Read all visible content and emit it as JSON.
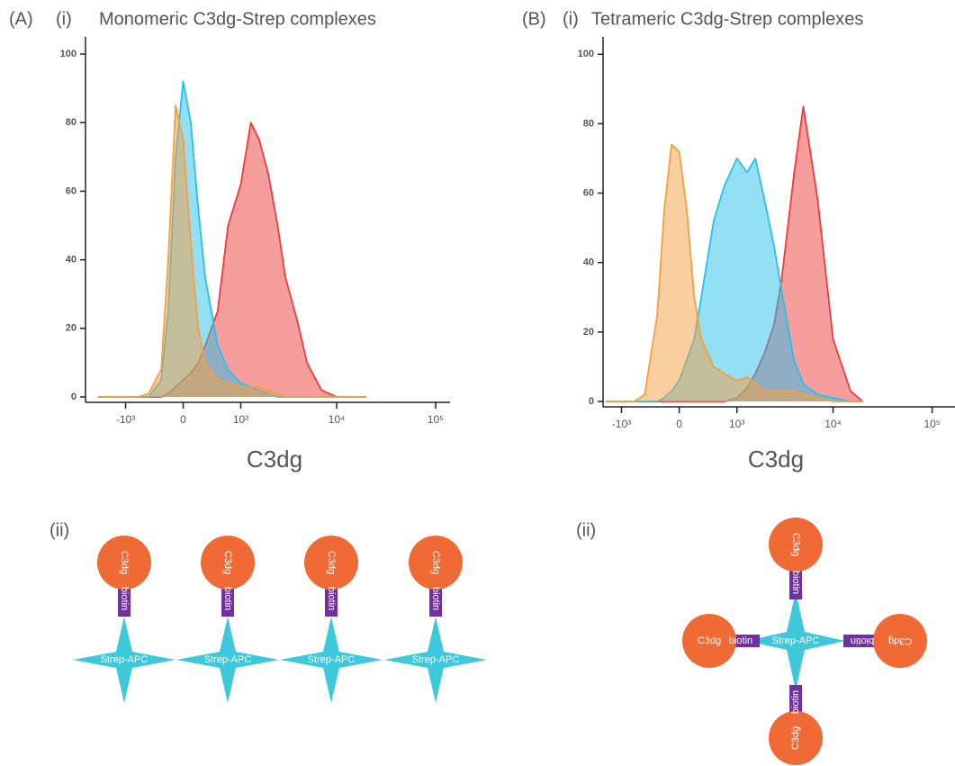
{
  "panels": [
    {
      "label": "(A)",
      "part": "(i)"
    },
    {
      "label": "(B)",
      "part": "(i)"
    }
  ],
  "chart_data": [
    {
      "type": "histogram-area",
      "title": "Monomeric C3dg-Strep complexes",
      "x_label": "C3dg",
      "x_scale": "biexponential",
      "x": [
        -2000,
        -1500,
        -1000,
        -700,
        -500,
        -300,
        -200,
        -100,
        0,
        100,
        200,
        300,
        500,
        700,
        1000,
        1300,
        1600,
        2000,
        2500,
        3000,
        4000,
        5000,
        7000,
        10000,
        15000,
        20000
      ],
      "series": [
        {
          "color": "#ee3b3b",
          "values": [
            0,
            0,
            0,
            0,
            0,
            0,
            1,
            3,
            5,
            7,
            10,
            15,
            25,
            50,
            62,
            80,
            75,
            65,
            50,
            35,
            22,
            10,
            2,
            0,
            0,
            0
          ]
        },
        {
          "color": "#27c0ea",
          "values": [
            0,
            0,
            0,
            0,
            0,
            5,
            25,
            70,
            92,
            80,
            55,
            35,
            15,
            8,
            4,
            3,
            2,
            1,
            0,
            0,
            0,
            0,
            0,
            0,
            0,
            0
          ]
        },
        {
          "color": "#f5a040",
          "values": [
            0,
            0,
            0,
            0,
            1,
            8,
            40,
            85,
            75,
            45,
            20,
            10,
            5,
            4,
            3,
            3,
            3,
            2,
            1,
            0,
            0,
            0,
            0,
            0,
            0,
            0
          ]
        }
      ],
      "xlim": [
        -2700,
        140000
      ],
      "xticks": [
        {
          "value": -1000,
          "label": "-10³"
        },
        0,
        {
          "value": 1000,
          "label": "10³"
        },
        {
          "value": 10000,
          "label": "10⁴"
        },
        {
          "value": 100000,
          "label": "10⁵"
        }
      ],
      "ylim": [
        0,
        105
      ],
      "yticks": [
        0,
        20,
        40,
        60,
        80,
        100
      ]
    },
    {
      "type": "histogram-area",
      "title": "Tetrameric C3dg-Strep complexes",
      "x_label": "C3dg",
      "x_scale": "biexponential",
      "x": [
        -1500,
        -1000,
        -700,
        -500,
        -300,
        -200,
        -100,
        0,
        100,
        200,
        300,
        500,
        700,
        1000,
        1300,
        1600,
        2000,
        2500,
        3000,
        4000,
        5000,
        7000,
        10000,
        15000,
        20000
      ],
      "series": [
        {
          "color": "#ee3b3b",
          "values": [
            0,
            0,
            0,
            0,
            0,
            0,
            0,
            0,
            0,
            0,
            0,
            0,
            0,
            1,
            4,
            8,
            14,
            22,
            35,
            65,
            85,
            58,
            18,
            3,
            0
          ]
        },
        {
          "color": "#27c0ea",
          "values": [
            0,
            0,
            0,
            0,
            0,
            1,
            3,
            6,
            12,
            18,
            30,
            52,
            62,
            70,
            66,
            70,
            58,
            45,
            32,
            12,
            5,
            2,
            1,
            0,
            0
          ]
        },
        {
          "color": "#f5a040",
          "values": [
            0,
            0,
            0,
            2,
            25,
            55,
            74,
            72,
            55,
            30,
            18,
            10,
            8,
            6,
            7,
            5,
            3,
            3,
            3,
            3,
            2,
            1,
            0,
            0,
            0
          ]
        }
      ],
      "xlim": [
        -1600,
        170000
      ],
      "xticks": [
        {
          "value": -1000,
          "label": "-10³"
        },
        0,
        {
          "value": 1000,
          "label": "10³"
        },
        {
          "value": 10000,
          "label": "10⁴"
        },
        {
          "value": 100000,
          "label": "10⁵"
        }
      ],
      "ylim": [
        0,
        105
      ],
      "yticks": [
        0,
        20,
        40,
        60,
        80,
        100
      ]
    }
  ],
  "diagram_a": {
    "label": "(ii)",
    "units": [
      {
        "ligand": "C3dg",
        "linker": "biotin",
        "core": "Strep-APC"
      },
      {
        "ligand": "C3dg",
        "linker": "biotin",
        "core": "Strep-APC"
      },
      {
        "ligand": "C3dg",
        "linker": "biotin",
        "core": "Strep-APC"
      },
      {
        "ligand": "C3dg",
        "linker": "biotin",
        "core": "Strep-APC"
      }
    ]
  },
  "diagram_b": {
    "label": "(ii)",
    "core": "Strep-APC",
    "arms": [
      {
        "ligand": "C3dg",
        "linker": "biotin"
      },
      {
        "ligand": "C3dg",
        "linker": "biotin"
      },
      {
        "ligand": "C3dg",
        "linker": "biotin"
      },
      {
        "ligand": "C3dg",
        "linker": "biotin"
      }
    ]
  }
}
